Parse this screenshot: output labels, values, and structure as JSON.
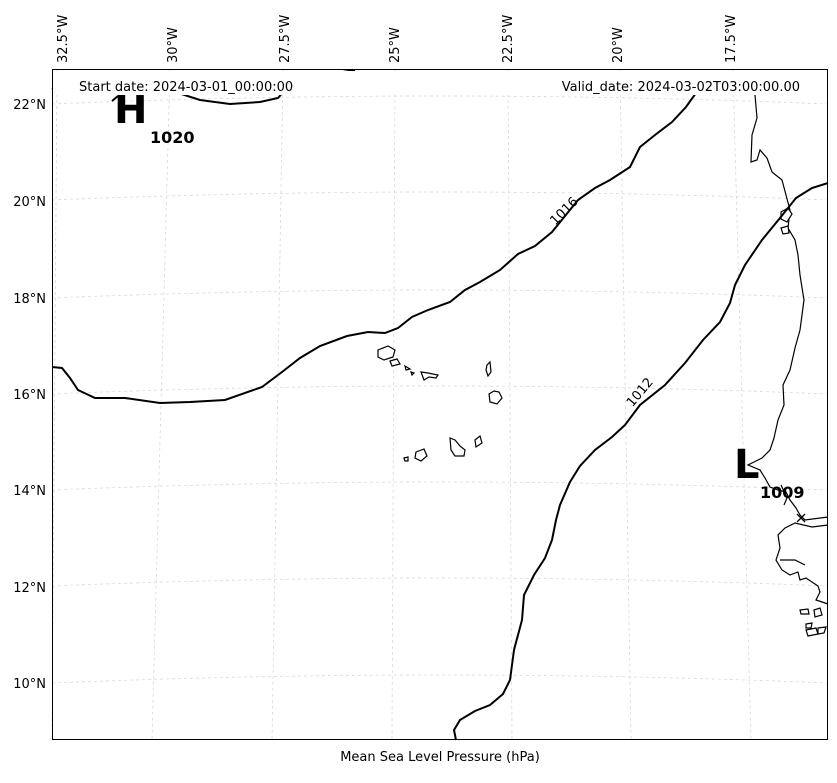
{
  "header": {
    "start_date": "Start date: 2024-03-01_00:00:00",
    "valid_date": "Valid_date: 2024-03-02T03:00:00.00"
  },
  "caption": "Mean Sea Level Pressure (hPa)",
  "longitude_ticks": [
    "32.5°W",
    "30°W",
    "27.5°W",
    "25°W",
    "22.5°W",
    "20°W",
    "17.5°W"
  ],
  "latitude_ticks": [
    "22°N",
    "20°N",
    "18°N",
    "16°N",
    "14°N",
    "12°N",
    "10°N"
  ],
  "pressure_centers": [
    {
      "type": "high",
      "letter": "H",
      "value": "1020"
    },
    {
      "type": "low",
      "letter": "L",
      "value": "1009"
    }
  ],
  "isobar_labels": [
    "1016",
    "1012"
  ],
  "colors": {
    "isobar": "#000000",
    "grid": "#d9d9d9",
    "coast": "#000000",
    "background": "#ffffff"
  }
}
